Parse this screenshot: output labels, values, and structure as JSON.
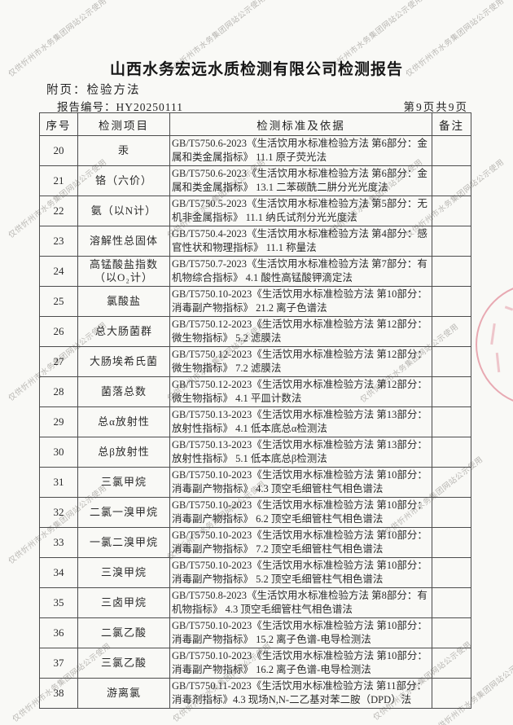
{
  "page": {
    "title": "山西水务宏远水质检测有限公司检测报告",
    "subtitle": "附页：检验方法",
    "report_no": "报告编号：HY20250111",
    "page_indicator": "第9页共9页"
  },
  "watermark": {
    "text": "仅供忻州市水务集团网站公示使用",
    "color": "#aeaca8"
  },
  "stamp": {
    "color": "#db677a"
  },
  "table": {
    "headers": [
      "序号",
      "检测项目",
      "检测标准及依据",
      "备注"
    ],
    "rows": [
      {
        "no": "20",
        "item": "汞",
        "standard": "GB/T5750.6-2023《生活饮用水标准检验方法 第6部分：金属和类金属指标》 11.1 原子荧光法",
        "remark": ""
      },
      {
        "no": "21",
        "item": "铬（六价）",
        "standard": "GB/T5750.6-2023《生活饮用水标准检验方法 第6部分：金属和类金属指标》 13.1 二苯碳酰二肼分光光度法",
        "remark": ""
      },
      {
        "no": "22",
        "item": "氨（以N计）",
        "standard": "GB/T5750.5-2023《生活饮用水标准检验方法 第5部分：无机非金属指标》 11.1 纳氏试剂分光光度法",
        "remark": ""
      },
      {
        "no": "23",
        "item": "溶解性总固体",
        "standard": "GB/T5750.4-2023《生活饮用水标准检验方法 第4部分：感官性状和物理指标》 11.1 称量法",
        "remark": ""
      },
      {
        "no": "24",
        "item": "高锰酸盐指数 （以O₂计）",
        "standard": "GB/T5750.7-2023《生活饮用水标准检验方法 第7部分：有机物综合指标》 4.1 酸性高锰酸钾滴定法",
        "remark": ""
      },
      {
        "no": "25",
        "item": "氯酸盐",
        "standard": "GB/T5750.10-2023《生活饮用水标准检验方法 第10部分：消毒副产物指标》 21.2 离子色谱法",
        "remark": ""
      },
      {
        "no": "26",
        "item": "总大肠菌群",
        "standard": "GB/T5750.12-2023《生活饮用水标准检验方法 第12部分：微生物指标》 5.2 滤膜法",
        "remark": ""
      },
      {
        "no": "27",
        "item": "大肠埃希氏菌",
        "standard": "GB/T5750.12-2023《生活饮用水标准检验方法 第12部分：微生物指标》 7.2 滤膜法",
        "remark": ""
      },
      {
        "no": "28",
        "item": "菌落总数",
        "standard": "GB/T5750.12-2023《生活饮用水标准检验方法 第12部分：微生物指标》 4.1 平皿计数法",
        "remark": ""
      },
      {
        "no": "29",
        "item": "总α放射性",
        "standard": "GB/T5750.13-2023《生活饮用水标准检验方法 第13部分：放射性指标》 4.1 低本底总α检测法",
        "remark": ""
      },
      {
        "no": "30",
        "item": "总β放射性",
        "standard": "GB/T5750.13-2023《生活饮用水标准检验方法 第13部分：放射性指标》 5.1 低本底总β检测法",
        "remark": ""
      },
      {
        "no": "31",
        "item": "三氯甲烷",
        "standard": "GB/T5750.10-2023《生活饮用水标准检验方法 第10部分：消毒副产物指标》 4.3 顶空毛细管柱气相色谱法",
        "remark": ""
      },
      {
        "no": "32",
        "item": "二氯一溴甲烷",
        "standard": "GB/T5750.10-2023《生活饮用水标准检验方法 第10部分：消毒副产物指标》 6.2 顶空毛细管柱气相色谱法",
        "remark": ""
      },
      {
        "no": "33",
        "item": "一氯二溴甲烷",
        "standard": "GB/T5750.10-2023《生活饮用水标准检验方法 第10部分：消毒副产物指标》 7.2 顶空毛细管柱气相色谱法",
        "remark": ""
      },
      {
        "no": "34",
        "item": "三溴甲烷",
        "standard": "GB/T5750.10-2023《生活饮用水标准检验方法 第10部分：消毒副产物指标》 5.2 顶空毛细管柱气相色谱法",
        "remark": ""
      },
      {
        "no": "35",
        "item": "三卤甲烷",
        "standard": "GB/T5750.8-2023《生活饮用水标准检验方法 第8部分：有机物指标》 4.3 顶空毛细管柱气相色谱法",
        "remark": ""
      },
      {
        "no": "36",
        "item": "二氯乙酸",
        "standard": "GB/T5750.10-2023《生活饮用水标准检验方法 第10部分：消毒副产物指标》 15.2 离子色谱-电导检测法",
        "remark": ""
      },
      {
        "no": "37",
        "item": "三氯乙酸",
        "standard": "GB/T5750.10-2023《生活饮用水标准检验方法 第10部分：消毒副产物指标》 16.2 离子色谱-电导检测法",
        "remark": ""
      },
      {
        "no": "38",
        "item": "游离氯",
        "standard": "GB/T5750.11-2023《生活饮用水标准检验方法 第11部分：消毒剂指标》4.3 现场N,N-二乙基对苯二胺（DPD）法",
        "remark": ""
      }
    ]
  }
}
